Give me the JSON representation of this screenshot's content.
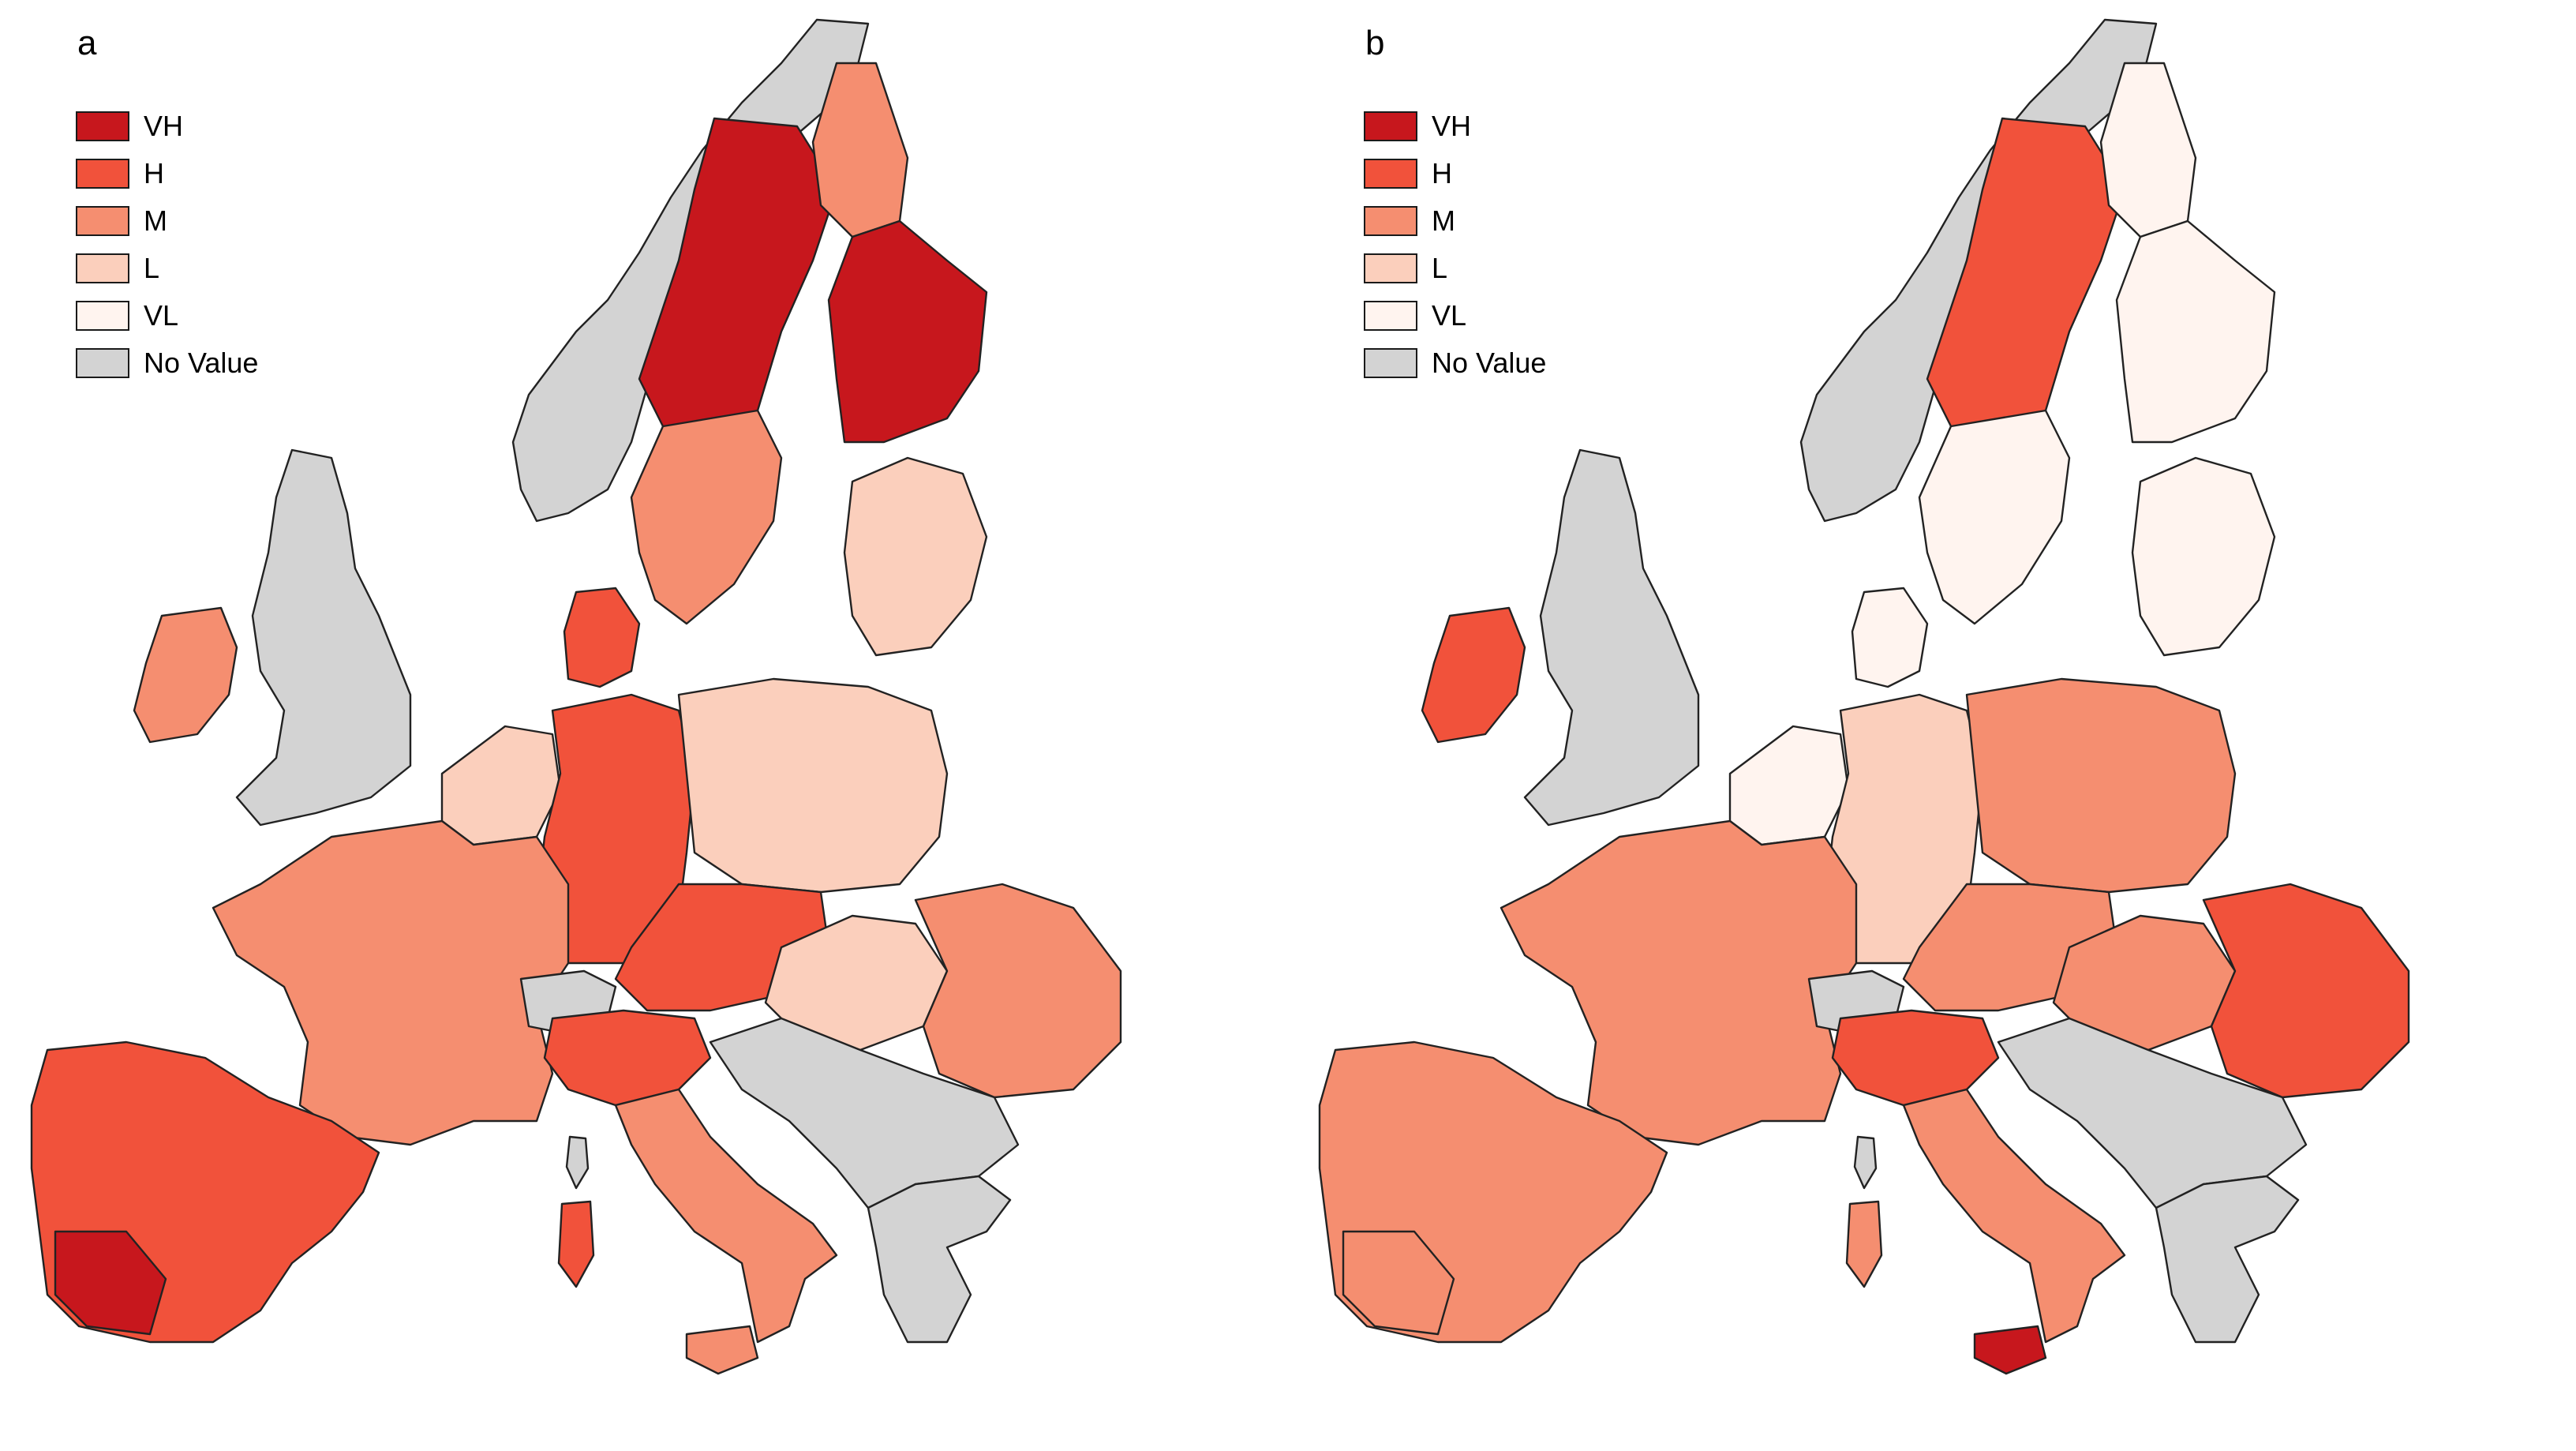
{
  "panels": [
    {
      "letter": "a"
    },
    {
      "letter": "b"
    }
  ],
  "legend": [
    {
      "label": "VH",
      "color": "#c7171d"
    },
    {
      "label": "H",
      "color": "#f1523b"
    },
    {
      "label": "M",
      "color": "#f58e70"
    },
    {
      "label": "L",
      "color": "#fbcfbc"
    },
    {
      "label": "VL",
      "color": "#fff4ef"
    },
    {
      "label": "No Value",
      "color": "#d3d3d3"
    }
  ],
  "classes": {
    "a": {
      "scandinavia_west": "#d3d3d3",
      "north_sweden": "#c7171d",
      "south_sweden": "#f58e70",
      "finland_north": "#f58e70",
      "finland_south": "#c7171d",
      "baltics": "#fbcfbc",
      "denmark": "#f1523b",
      "uk": "#d3d3d3",
      "ireland": "#f58e70",
      "benelux": "#fbcfbc",
      "germany": "#f1523b",
      "poland": "#fbcfbc",
      "france": "#f58e70",
      "switzerland": "#d3d3d3",
      "italy_north": "#f1523b",
      "italy_south": "#f58e70",
      "iberia": "#f1523b",
      "iberia_hot": "#c7171d",
      "czech_austria": "#f1523b",
      "hungary": "#fbcfbc",
      "romania": "#f58e70",
      "balkans": "#d3d3d3",
      "greece": "#d3d3d3",
      "sardinia": "#f1523b",
      "sicily": "#f58e70",
      "corsica": "#d3d3d3"
    },
    "b": {
      "scandinavia_west": "#d3d3d3",
      "north_sweden": "#f1523b",
      "south_sweden": "#fff4ef",
      "finland_north": "#fff4ef",
      "finland_south": "#fff4ef",
      "baltics": "#fff4ef",
      "denmark": "#fff4ef",
      "uk": "#d3d3d3",
      "ireland": "#f1523b",
      "benelux": "#fff4ef",
      "germany": "#fbcfbc",
      "poland": "#f58e70",
      "france": "#f58e70",
      "switzerland": "#d3d3d3",
      "italy_north": "#f1523b",
      "italy_south": "#f58e70",
      "iberia": "#f58e70",
      "iberia_hot": "#f58e70",
      "czech_austria": "#f58e70",
      "hungary": "#f58e70",
      "romania": "#f1523b",
      "balkans": "#d3d3d3",
      "greece": "#d3d3d3",
      "sardinia": "#f58e70",
      "sicily": "#c7171d",
      "corsica": "#d3d3d3"
    }
  }
}
